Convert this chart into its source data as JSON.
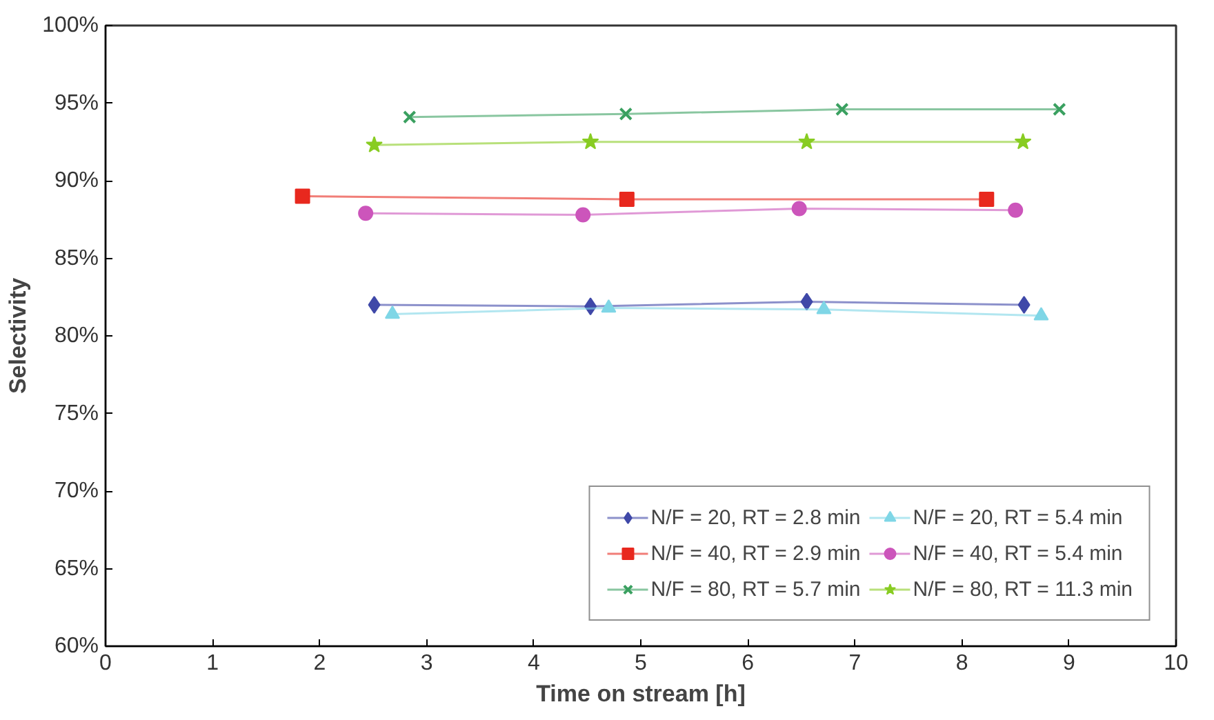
{
  "chart_data": {
    "type": "line",
    "xlabel": "Time on stream [h]",
    "ylabel": "Selectivity",
    "xlim": [
      0,
      10
    ],
    "xticks": [
      0,
      1,
      2,
      3,
      4,
      5,
      6,
      7,
      8,
      9,
      10
    ],
    "ylim": [
      60,
      100
    ],
    "yticks": [
      {
        "value": 60,
        "label": "60%"
      },
      {
        "value": 65,
        "label": "65%"
      },
      {
        "value": 70,
        "label": "70%"
      },
      {
        "value": 75,
        "label": "75%"
      },
      {
        "value": 80,
        "label": "80%"
      },
      {
        "value": 85,
        "label": "85%"
      },
      {
        "value": 90,
        "label": "90%"
      },
      {
        "value": 95,
        "label": "95%"
      },
      {
        "value": 100,
        "label": "100%"
      }
    ],
    "grid": false,
    "legend": "bottom right",
    "series": [
      {
        "name": "N/F = 20, RT = 2.8 min",
        "color": "#3f48a8",
        "marker": "diamond",
        "x": [
          2.51,
          4.53,
          6.55,
          8.58
        ],
        "values": [
          82.0,
          81.9,
          82.2,
          82.0
        ]
      },
      {
        "name": "N/F = 20, RT = 5.4 min",
        "color": "#7fd6e6",
        "marker": "triangle",
        "x": [
          2.68,
          4.7,
          6.71,
          8.74
        ],
        "values": [
          81.4,
          81.8,
          81.7,
          81.3
        ]
      },
      {
        "name": "N/F = 40, RT = 2.9 min",
        "color": "#e8281e",
        "marker": "square",
        "x": [
          1.84,
          4.87,
          8.23
        ],
        "values": [
          89.0,
          88.8,
          88.8
        ]
      },
      {
        "name": "N/F = 40, RT = 5.4 min",
        "color": "#cc55bb",
        "marker": "circle",
        "x": [
          2.43,
          4.46,
          6.48,
          8.5
        ],
        "values": [
          87.9,
          87.8,
          88.2,
          88.1
        ]
      },
      {
        "name": "N/F = 80, RT = 5.7 min",
        "color": "#3aa060",
        "marker": "cross",
        "x": [
          2.84,
          4.86,
          6.88,
          8.91
        ],
        "values": [
          94.1,
          94.3,
          94.6,
          94.6
        ]
      },
      {
        "name": "N/F = 80, RT = 11.3 min",
        "color": "#88cc22",
        "marker": "star",
        "x": [
          2.51,
          4.53,
          6.55,
          8.57
        ],
        "values": [
          92.3,
          92.5,
          92.5,
          92.5
        ]
      }
    ]
  }
}
